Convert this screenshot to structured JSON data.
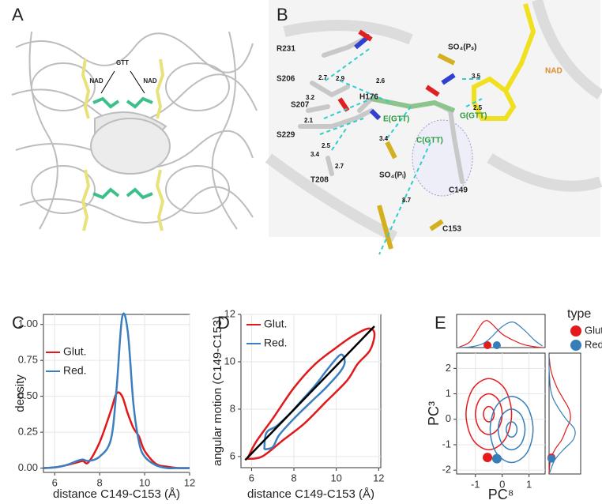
{
  "panel_letters": [
    "A",
    "B",
    "C",
    "D",
    "E"
  ],
  "structure_a": {
    "labels": [
      "NAD",
      "GTT",
      "NAD"
    ]
  },
  "structure_b": {
    "labels": [
      "R231",
      "S206",
      "S207",
      "H176",
      "S229",
      "T208",
      "SO₄(Pᵢ)",
      "SO₄(Pₛ)",
      "NAD",
      "E(GTT)",
      "G(GTT)",
      "C(GTT)",
      "C149",
      "C153"
    ],
    "distances": [
      "2.7",
      "2.9",
      "2.6",
      "3.2",
      "2.1",
      "2.5",
      "3.4",
      "2.7",
      "3.4",
      "3.5",
      "2.5",
      "8.7"
    ]
  },
  "chart_data": [
    {
      "type": "line",
      "x_label": "distance C149-C153 (Å)",
      "y_label": "density",
      "grid": true,
      "legend": "top-left",
      "x": [
        5.5,
        6,
        6.5,
        7,
        7.25,
        7.5,
        8,
        8.5,
        8.75,
        9,
        9.25,
        9.5,
        9.75,
        10,
        10.5,
        11,
        11.5,
        12
      ],
      "series": [
        {
          "name": "Glut.",
          "color": "#e0191c",
          "values": [
            0,
            0.005,
            0.02,
            0.04,
            0.05,
            0.04,
            0.18,
            0.4,
            0.52,
            0.5,
            0.38,
            0.28,
            0.22,
            0.12,
            0.03,
            0.01,
            0,
            0
          ]
        },
        {
          "name": "Red.",
          "color": "#3b7fc0",
          "values": [
            0,
            0.005,
            0.02,
            0.05,
            0.06,
            0.05,
            0.08,
            0.2,
            0.55,
            1.05,
            0.95,
            0.45,
            0.18,
            0.08,
            0.02,
            0,
            0,
            0
          ]
        }
      ],
      "xlim": [
        5.5,
        12
      ],
      "ylim": [
        -0.03,
        1.07
      ],
      "xticks": [
        6,
        8,
        10,
        12
      ],
      "yticks": [
        {
          "value": 0,
          "label": "0.00"
        },
        0.25,
        {
          "value": 0.5,
          "label": "0.50"
        },
        0.75,
        {
          "value": 1,
          "label": "1.00"
        }
      ]
    },
    {
      "type": "contour",
      "x_label": "distance C149-C153 (Å)",
      "y_label": "angular motion (C149-C153)",
      "grid": true,
      "legend": "top-left",
      "series": [
        {
          "name": "Glut.",
          "color": "#e0191c",
          "x": [
            5.8,
            6.2,
            7,
            8,
            9,
            10,
            10.8,
            11.5,
            11.8,
            11.6,
            11,
            10.5,
            9.5,
            8.5,
            7.5,
            6.5,
            5.8
          ],
          "y": [
            5.9,
            6.6,
            7.6,
            8.9,
            9.9,
            10.6,
            11.1,
            11.4,
            11.2,
            10.5,
            9.9,
            9.2,
            8.3,
            7.4,
            6.7,
            6,
            5.9
          ]
        },
        {
          "name": "Red.",
          "color": "#3b7fc0",
          "x": [
            6.6,
            6.7,
            7.2,
            7.8,
            8.3,
            9,
            9.6,
            10.2,
            10.4,
            10.2,
            9.5,
            8.8,
            8,
            7.3,
            7,
            6.6
          ],
          "y": [
            6.3,
            7,
            7.3,
            7.8,
            8.3,
            9,
            9.7,
            10.3,
            10,
            9.6,
            8.9,
            8.3,
            7.6,
            6.9,
            6.4,
            6.3
          ]
        }
      ],
      "fit_line": {
        "color": "#000000",
        "x": [
          5.7,
          11.8
        ],
        "y": [
          5.85,
          11.5
        ]
      },
      "xlim": [
        5.5,
        12.1
      ],
      "ylim": [
        5.53,
        12
      ],
      "xticks": [
        6,
        8,
        10,
        12
      ],
      "yticks": [
        6,
        8,
        10,
        12
      ]
    },
    {
      "type": "contour_marginal",
      "x_label": "PC⁸",
      "y_label": "PC³",
      "legend_title": "type",
      "grid": true,
      "xlim": [
        -1.7,
        1.6
      ],
      "ylim": [
        -2.15,
        2.6
      ],
      "xticks": [
        -1,
        0,
        1
      ],
      "yticks": [
        -2,
        -1,
        0,
        1,
        2
      ],
      "marginal_lim": [
        0,
        1
      ],
      "marginal_x": [
        -1.6,
        -1.2,
        -0.8,
        -0.6,
        -0.4,
        0,
        0.4,
        0.8,
        1.2,
        1.5
      ],
      "marginal_y": [
        -2.1,
        -1.6,
        -1.2,
        -0.8,
        -0.4,
        0,
        0.4,
        0.8,
        1.2,
        1.6,
        2.0,
        2.4
      ],
      "series": [
        {
          "name": "Glut",
          "color": "#e41a1c",
          "marker": [
            -0.55,
            -1.5
          ],
          "contours": [
            {
              "x": [
                -0.3,
                -0.36,
                -0.5,
                -0.64,
                -0.7,
                -0.64,
                -0.5,
                -0.36
              ],
              "y": [
                0.2,
                0.41,
                0.5,
                0.41,
                0.2,
                -0.01,
                -0.1,
                -0.01
              ]
            },
            {
              "x": [
                0,
                -0.15,
                -0.5,
                -0.85,
                -1.0,
                -0.85,
                -0.5,
                -0.15
              ],
              "y": [
                0.2,
                0.77,
                1.0,
                0.77,
                0.2,
                -0.37,
                -0.6,
                -0.37
              ]
            },
            {
              "x": [
                0.35,
                0.1,
                -0.5,
                -1.1,
                -1.35,
                -1.1,
                -0.5,
                0.1
              ],
              "y": [
                0.2,
                1.19,
                1.6,
                1.19,
                0.2,
                -0.79,
                -1.2,
                -0.79
              ]
            }
          ],
          "marginal_x_density": [
            0.02,
            0.2,
            0.75,
            0.9,
            0.8,
            0.45,
            0.25,
            0.1,
            0.03,
            0
          ],
          "marginal_y_density": [
            0,
            0.05,
            0.2,
            0.45,
            0.6,
            0.75,
            0.7,
            0.5,
            0.3,
            0.15,
            0.05,
            0.01
          ]
        },
        {
          "name": "Red",
          "color": "#377eb8",
          "marker": [
            -0.2,
            -1.55
          ],
          "contours": [
            {
              "x": [
                0.55,
                0.49,
                0.35,
                0.21,
                0.15,
                0.21,
                0.35,
                0.49
              ],
              "y": [
                -0.4,
                -0.19,
                -0.1,
                -0.19,
                -0.4,
                -0.61,
                -0.7,
                -0.61
              ]
            },
            {
              "x": [
                0.85,
                0.7,
                0.35,
                0,
                -0.15,
                0,
                0.35,
                0.7
              ],
              "y": [
                -0.4,
                0.17,
                0.4,
                0.17,
                -0.4,
                -0.97,
                -1.2,
                -0.97
              ]
            },
            {
              "x": [
                1.15,
                0.92,
                0.35,
                -0.22,
                -0.45,
                -0.22,
                0.35,
                0.92
              ],
              "y": [
                -0.4,
                0.52,
                0.9,
                0.52,
                -0.4,
                -1.32,
                -1.7,
                -1.32
              ]
            }
          ],
          "marginal_x_density": [
            0,
            0.02,
            0.1,
            0.2,
            0.35,
            0.7,
            0.85,
            0.6,
            0.25,
            0.05
          ],
          "marginal_y_density": [
            0.02,
            0.2,
            0.5,
            0.85,
            0.9,
            0.6,
            0.35,
            0.15,
            0.05,
            0.02,
            0,
            0
          ]
        }
      ]
    }
  ]
}
